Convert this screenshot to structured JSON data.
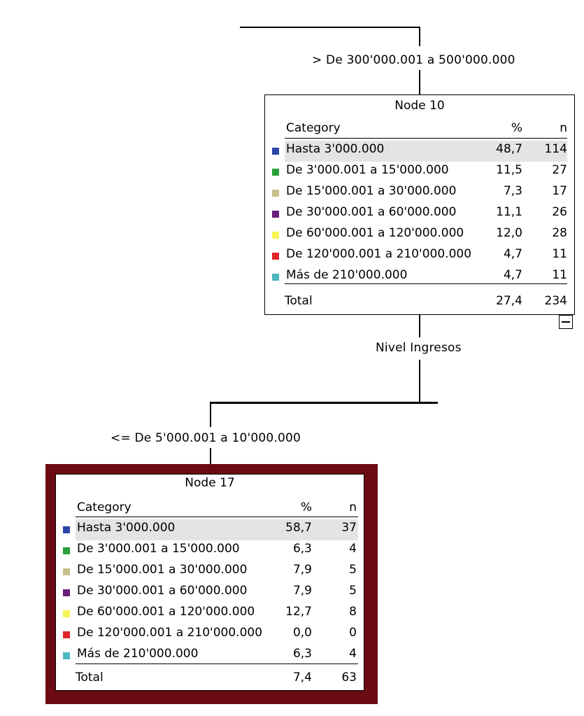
{
  "colors": {
    "selection_frame": "#6b0a12",
    "row_highlight": "#e4e4e4",
    "categories": [
      "#2b46a8",
      "#2aa13a",
      "#c9c08c",
      "#6a1f7a",
      "#f5f556",
      "#e0242a",
      "#4cb8c0"
    ]
  },
  "edges": {
    "top_split_label": "> De 300'000.001 a 500'000.000",
    "split_variable": "Nivel Ingresos",
    "bottom_split_label": "<= De 5'000.001 a 10'000.000"
  },
  "node10": {
    "title": "Node 10",
    "headers": {
      "category": "Category",
      "percent": "%",
      "n": "n"
    },
    "rows": [
      {
        "label": "Hasta 3'000.000",
        "percent": "48,7",
        "n": "114"
      },
      {
        "label": "De 3'000.001 a 15'000.000",
        "percent": "11,5",
        "n": "27"
      },
      {
        "label": "De 15'000.001 a 30'000.000",
        "percent": "7,3",
        "n": "17"
      },
      {
        "label": "De 30'000.001 a 60'000.000",
        "percent": "11,1",
        "n": "26"
      },
      {
        "label": "De 60'000.001 a 120'000.000",
        "percent": "12,0",
        "n": "28"
      },
      {
        "label": "De 120'000.001 a 210'000.000",
        "percent": "4,7",
        "n": "11"
      },
      {
        "label": "Más de 210'000.000",
        "percent": "4,7",
        "n": "11"
      }
    ],
    "total": {
      "label": "Total",
      "percent": "27,4",
      "n": "234"
    },
    "collapse_icon": "minus-icon"
  },
  "node17": {
    "title": "Node 17",
    "headers": {
      "category": "Category",
      "percent": "%",
      "n": "n"
    },
    "rows": [
      {
        "label": "Hasta 3'000.000",
        "percent": "58,7",
        "n": "37"
      },
      {
        "label": "De 3'000.001 a 15'000.000",
        "percent": "6,3",
        "n": "4"
      },
      {
        "label": "De 15'000.001 a 30'000.000",
        "percent": "7,9",
        "n": "5"
      },
      {
        "label": "De 30'000.001 a 60'000.000",
        "percent": "7,9",
        "n": "5"
      },
      {
        "label": "De 60'000.001 a 120'000.000",
        "percent": "12,7",
        "n": "8"
      },
      {
        "label": "De 120'000.001 a 210'000.000",
        "percent": "0,0",
        "n": "0"
      },
      {
        "label": "Más de 210'000.000",
        "percent": "6,3",
        "n": "4"
      }
    ],
    "total": {
      "label": "Total",
      "percent": "7,4",
      "n": "63"
    }
  }
}
